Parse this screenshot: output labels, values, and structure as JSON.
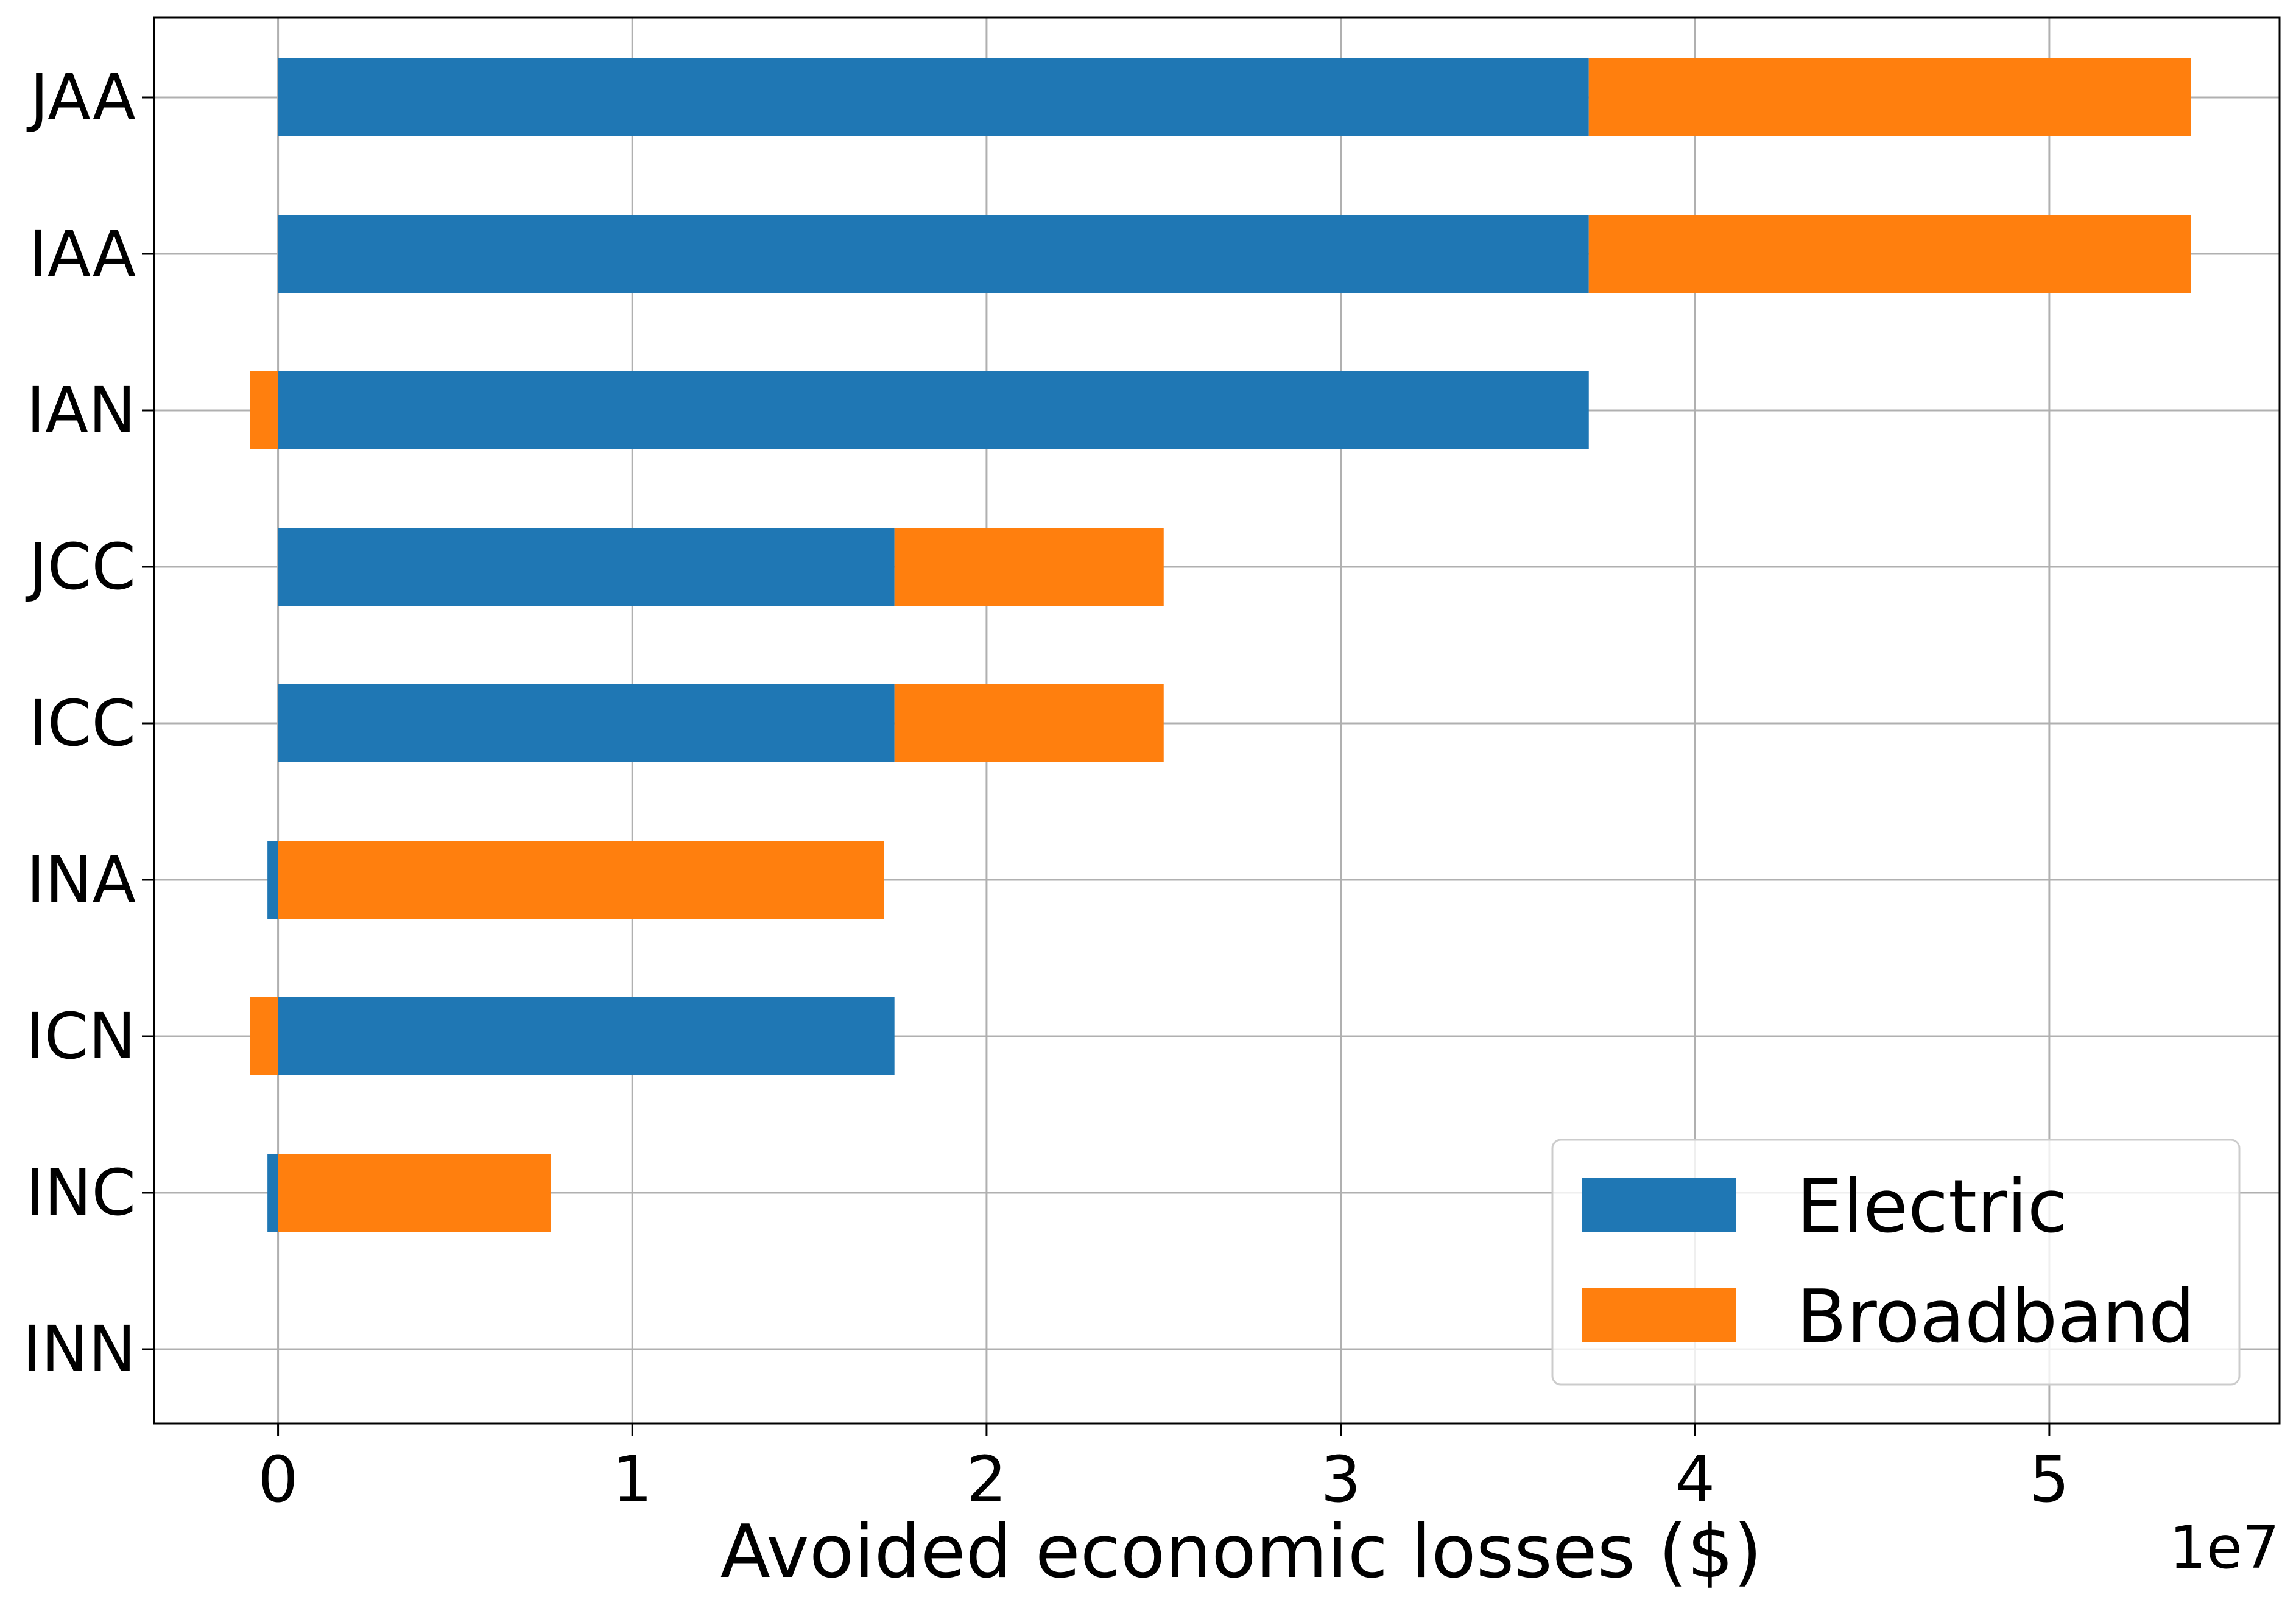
{
  "chart_data": {
    "type": "bar",
    "orientation": "horizontal",
    "stacked": true,
    "categories": [
      "INN",
      "INC",
      "ICN",
      "INA",
      "ICC",
      "JCC",
      "IAN",
      "IAA",
      "JAA"
    ],
    "series": [
      {
        "name": "Electric",
        "color": "#1f77b4",
        "values": [
          0,
          -300000,
          17400000,
          -300000,
          17400000,
          17400000,
          37000000,
          37000000,
          37000000
        ]
      },
      {
        "name": "Broadband",
        "color": "#ff7f0e",
        "values": [
          0,
          7700000,
          -800000,
          17100000,
          7600000,
          7600000,
          -800000,
          17000000,
          17000000
        ]
      }
    ],
    "xlabel": "Avoided economic losses ($)",
    "ylabel": "",
    "xlim": [
      -3500000,
      56500000
    ],
    "xticks": [
      0,
      10000000,
      20000000,
      30000000,
      40000000,
      50000000
    ],
    "xtick_labels": [
      "0",
      "1",
      "2",
      "3",
      "4",
      "5"
    ],
    "offset_text": "1e7",
    "grid": true,
    "legend_position": "lower-right"
  }
}
